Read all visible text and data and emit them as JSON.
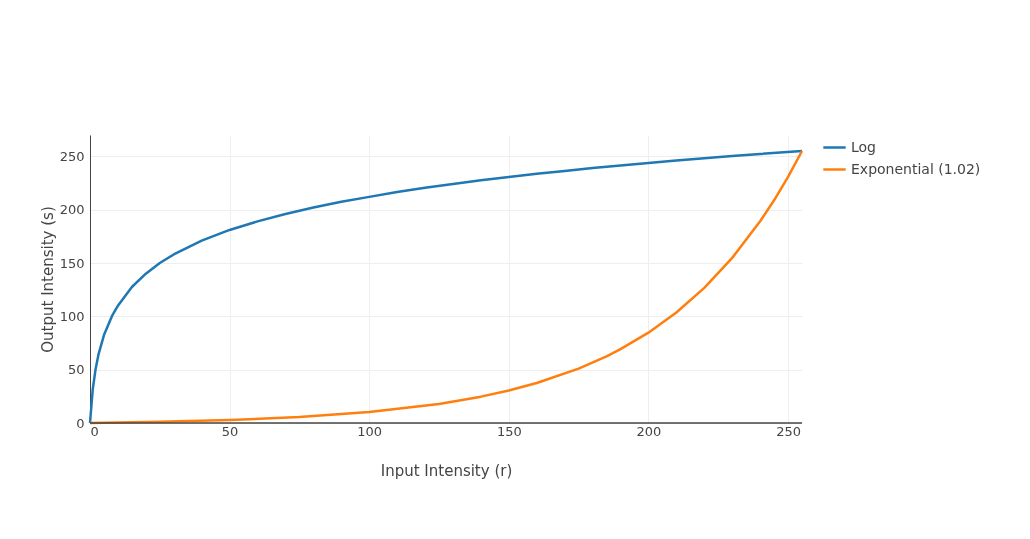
{
  "chart_data": {
    "type": "line",
    "xlabel": "Input Intensity (r)",
    "ylabel": "Output Intensity (s)",
    "xlim": [
      0,
      255
    ],
    "ylim": [
      0,
      270
    ],
    "xticks": [
      0,
      50,
      100,
      150,
      200,
      250
    ],
    "yticks": [
      0,
      50,
      100,
      150,
      200,
      250
    ],
    "grid": true,
    "legend": "top right",
    "series": [
      {
        "name": "Log",
        "color": "#1f77b4",
        "x": [
          0,
          1,
          2,
          3,
          5,
          8,
          10,
          15,
          20,
          25,
          30,
          40,
          50,
          60,
          70,
          80,
          90,
          100,
          110,
          120,
          130,
          140,
          150,
          160,
          170,
          180,
          190,
          200,
          210,
          220,
          230,
          240,
          255
        ],
        "values": [
          0,
          31.9,
          50.5,
          63.8,
          82.4,
          101,
          110,
          127.5,
          140,
          150,
          158,
          171,
          181,
          189,
          196,
          202,
          207.5,
          212,
          216.6,
          220.6,
          224,
          227.6,
          230.7,
          233.6,
          236.3,
          239,
          241.5,
          243.8,
          246,
          248.2,
          250.2,
          252.2,
          255
        ]
      },
      {
        "name": "Exponential (1.02)",
        "color": "#ff7f0e",
        "x": [
          0,
          25,
          50,
          75,
          100,
          125,
          140,
          150,
          160,
          175,
          185,
          190,
          200,
          210,
          220,
          230,
          240,
          245,
          250,
          255
        ],
        "values": [
          0,
          1.1,
          2.8,
          5.6,
          10.3,
          17.8,
          24.7,
          30.4,
          37.5,
          51,
          62.5,
          69.2,
          84.7,
          103.6,
          126.7,
          154.8,
          189.1,
          208.8,
          230.7,
          255
        ]
      }
    ]
  }
}
